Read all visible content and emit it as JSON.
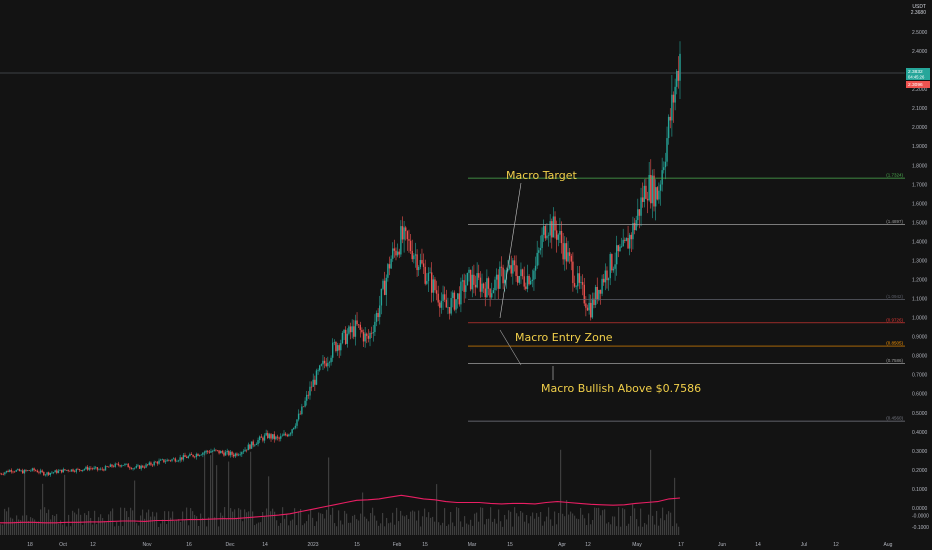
{
  "header": {
    "currency": "USDT",
    "price_label": "2.3680"
  },
  "price_badges": [
    {
      "value": "2.3832",
      "sub": "04:45:26",
      "color": "#26a69a"
    },
    {
      "value": "2.3096",
      "sub": "",
      "color": "#ef5350"
    }
  ],
  "annotations": {
    "macro_target": "Macro Target",
    "macro_entry_zone": "Macro Entry Zone",
    "macro_bullish": "Macro Bullish Above $0.7586"
  },
  "fib_levels": [
    {
      "label": "(1.7324)",
      "value": 1.7324,
      "color": "#4caf50"
    },
    {
      "label": "(1.4897)",
      "value": 1.4897,
      "color": "#9e9e9e"
    },
    {
      "label": "(1.0942)",
      "value": 1.0942,
      "color": "#5d606b"
    },
    {
      "label": "(0.9726)",
      "value": 0.9726,
      "color": "#e53935"
    },
    {
      "label": "(0.8505)",
      "value": 0.8505,
      "color": "#ff9800"
    },
    {
      "label": "(0.7586)",
      "value": 0.7586,
      "color": "#9e9e9e"
    },
    {
      "label": "(0.4560)",
      "value": 0.456,
      "color": "#787b86"
    }
  ],
  "chart_data": {
    "type": "candlestick",
    "y_ticks": [
      "2.5000",
      "2.4000",
      "2.3000",
      "2.2000",
      "2.1000",
      "2.0000",
      "1.9000",
      "1.8000",
      "1.7000",
      "1.6000",
      "1.5000",
      "1.4000",
      "1.3000",
      "1.2000",
      "1.1000",
      "1.0000",
      "0.9000",
      "0.8000",
      "0.7000",
      "0.6000",
      "0.5000",
      "0.4000",
      "0.3000",
      "0.2000",
      "0.1000",
      "0.0000",
      "-0.0000",
      "-0.1000"
    ],
    "ylim": [
      -0.13,
      2.58
    ],
    "x_ticks": [
      "18",
      "Oct",
      "12",
      "Nov",
      "16",
      "Dec",
      "14",
      "2023",
      "15",
      "Feb",
      "15",
      "Mar",
      "15",
      "Apr",
      "12",
      "May",
      "17",
      "Jun",
      "14",
      "Jul",
      "12",
      "Aug"
    ],
    "price_path": [
      [
        0.18,
        0.05
      ],
      [
        0.2,
        0.05
      ],
      [
        0.19,
        0.06
      ],
      [
        0.2,
        0.06
      ],
      [
        0.18,
        0.05
      ],
      [
        0.19,
        0.05
      ],
      [
        0.2,
        0.06
      ],
      [
        0.2,
        0.06
      ],
      [
        0.21,
        0.07
      ],
      [
        0.2,
        0.07
      ],
      [
        0.22,
        0.08
      ],
      [
        0.23,
        0.09
      ],
      [
        0.21,
        0.09
      ],
      [
        0.22,
        0.08
      ],
      [
        0.24,
        0.1
      ],
      [
        0.25,
        0.1
      ],
      [
        0.26,
        0.11
      ],
      [
        0.27,
        0.12
      ],
      [
        0.29,
        0.12
      ],
      [
        0.3,
        0.13
      ],
      [
        0.29,
        0.14
      ],
      [
        0.28,
        0.14
      ],
      [
        0.31,
        0.16
      ],
      [
        0.35,
        0.18
      ],
      [
        0.38,
        0.2
      ],
      [
        0.36,
        0.22
      ],
      [
        0.4,
        0.25
      ],
      [
        0.5,
        0.3
      ],
      [
        0.65,
        0.35
      ],
      [
        0.75,
        0.4
      ],
      [
        0.85,
        0.45
      ],
      [
        0.9,
        0.5
      ],
      [
        0.95,
        0.55
      ],
      [
        0.88,
        0.56
      ],
      [
        1.05,
        0.58
      ],
      [
        1.3,
        0.62
      ],
      [
        1.42,
        0.66
      ],
      [
        1.36,
        0.62
      ],
      [
        1.25,
        0.58
      ],
      [
        1.15,
        0.56
      ],
      [
        1.05,
        0.52
      ],
      [
        1.1,
        0.5
      ],
      [
        1.2,
        0.5
      ],
      [
        1.18,
        0.5
      ],
      [
        1.15,
        0.48
      ],
      [
        1.22,
        0.47
      ],
      [
        1.25,
        0.48
      ],
      [
        1.2,
        0.48
      ],
      [
        1.25,
        0.47
      ],
      [
        1.5,
        0.5
      ],
      [
        1.45,
        0.52
      ],
      [
        1.3,
        0.5
      ],
      [
        1.15,
        0.48
      ],
      [
        1.05,
        0.46
      ],
      [
        1.2,
        0.45
      ],
      [
        1.3,
        0.44
      ],
      [
        1.35,
        0.45
      ],
      [
        1.5,
        0.48
      ],
      [
        1.7,
        0.5
      ],
      [
        1.65,
        0.52
      ],
      [
        2.0,
        0.58
      ],
      [
        2.38,
        0.6
      ]
    ],
    "volume_line": [
      0.05,
      0.05,
      0.06,
      0.06,
      0.05,
      0.05,
      0.06,
      0.06,
      0.07,
      0.07,
      0.08,
      0.09,
      0.09,
      0.08,
      0.1,
      0.1,
      0.11,
      0.12,
      0.12,
      0.13,
      0.14,
      0.14,
      0.16,
      0.18,
      0.2,
      0.22,
      0.25,
      0.3,
      0.35,
      0.4,
      0.45,
      0.5,
      0.55,
      0.56,
      0.58,
      0.62,
      0.66,
      0.62,
      0.58,
      0.56,
      0.52,
      0.5,
      0.5,
      0.5,
      0.48,
      0.47,
      0.48,
      0.48,
      0.47,
      0.5,
      0.52,
      0.5,
      0.48,
      0.46,
      0.45,
      0.44,
      0.45,
      0.48,
      0.5,
      0.52,
      0.58,
      0.6
    ]
  }
}
